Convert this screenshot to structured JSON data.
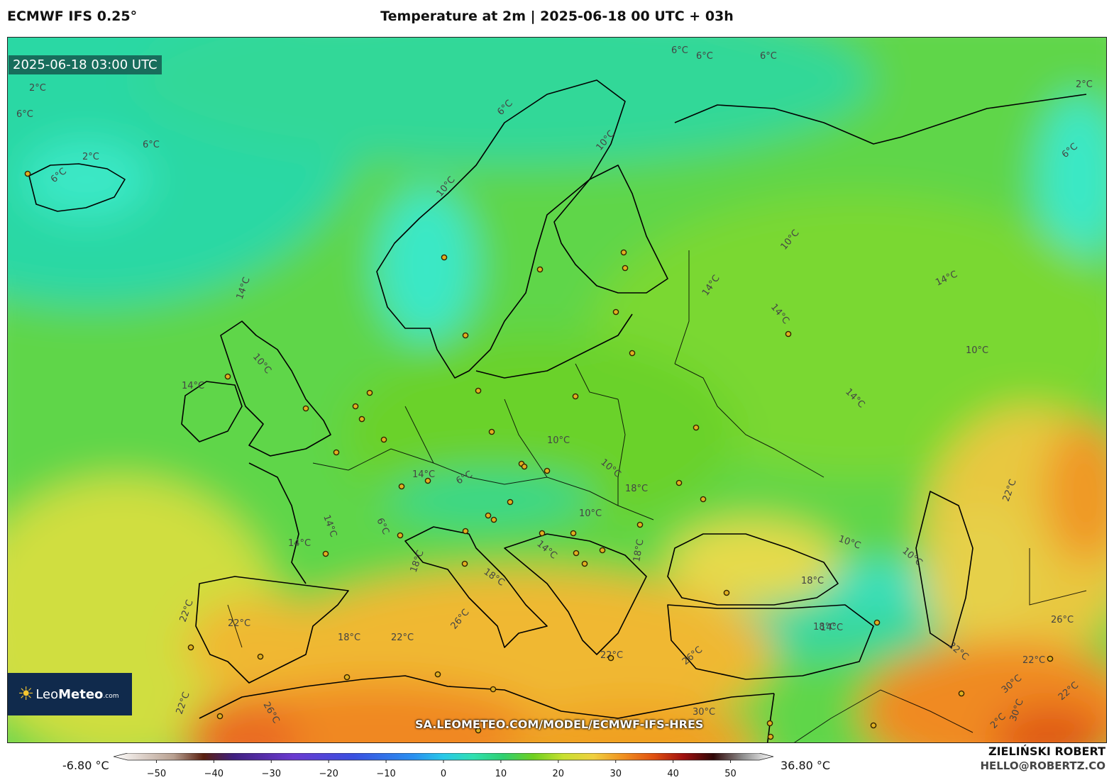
{
  "header": {
    "model": "ECMWF IFS 0.25°",
    "title": "Temperature at 2m | 2025-06-18 00 UTC + 03h"
  },
  "map": {
    "valid_time": "2025-06-18 03:00 UTC",
    "website": "SA.LEOMETEO.COM/MODEL/ECMWF-IFS-HRES",
    "logo": {
      "brand_light": "Leo",
      "brand_bold": "Meteo",
      "brand_suffix": ".com",
      "icon": "sun-icon"
    },
    "contour_labels": [
      "2°C",
      "6°C",
      "6°C",
      "2°C",
      "6°C",
      "6°C",
      "6°C",
      "6°C",
      "6°C",
      "10°C",
      "10°C",
      "14°C",
      "14°C",
      "10°C",
      "14°C",
      "14°C",
      "14°C",
      "10°C",
      "10°C",
      "10°C",
      "10°C",
      "14°C",
      "14°C",
      "14°C",
      "6°C",
      "6°C",
      "10°C",
      "14°C",
      "14°C",
      "22°C",
      "18°C",
      "18°C",
      "18°C",
      "22°C",
      "18°C",
      "22°C",
      "18°C",
      "22°C",
      "26°C",
      "26°C",
      "22°C",
      "18°C",
      "26°C",
      "30°C",
      "22°C",
      "22°C",
      "22°C",
      "26°C",
      "30°C",
      "26°C",
      "30°C",
      "2°C",
      "2°C",
      "6°C",
      "10°C",
      "10°C",
      "18°C",
      "14°C",
      "22°C"
    ],
    "colors": {
      "cold_cyan": "#33e8c4",
      "cool_green": "#3fd36a",
      "mild_green": "#7ad51c",
      "warm_yellow": "#e8d850",
      "hot_orange": "#f0a020",
      "very_hot": "#e86010"
    }
  },
  "colorbar": {
    "min_label": "-6.80 °C",
    "max_label": "36.80 °C",
    "ticks": [
      "−50",
      "−40",
      "−30",
      "−20",
      "−10",
      "0",
      "10",
      "20",
      "30",
      "40",
      "50"
    ],
    "range": [
      -55,
      55
    ],
    "stops": [
      {
        "v": -55,
        "c": "#ffffff"
      },
      {
        "v": -45,
        "c": "#b8a090"
      },
      {
        "v": -40,
        "c": "#5a2010"
      },
      {
        "v": -35,
        "c": "#402080"
      },
      {
        "v": -25,
        "c": "#6a3ad0"
      },
      {
        "v": -15,
        "c": "#3a50e0"
      },
      {
        "v": -5,
        "c": "#2a90f0"
      },
      {
        "v": 0,
        "c": "#28c8e8"
      },
      {
        "v": 5,
        "c": "#30e0b0"
      },
      {
        "v": 10,
        "c": "#30d070"
      },
      {
        "v": 15,
        "c": "#70d020"
      },
      {
        "v": 20,
        "c": "#c8e030"
      },
      {
        "v": 25,
        "c": "#f0d040"
      },
      {
        "v": 30,
        "c": "#f09020"
      },
      {
        "v": 35,
        "c": "#e05010"
      },
      {
        "v": 40,
        "c": "#a01010"
      },
      {
        "v": 45,
        "c": "#300808"
      },
      {
        "v": 50,
        "c": "#909090"
      },
      {
        "v": 55,
        "c": "#ffffff"
      }
    ]
  },
  "author": {
    "name": "ZIELIŃSKI ROBERT",
    "email": "HELLO@ROBERTZ.CO"
  }
}
